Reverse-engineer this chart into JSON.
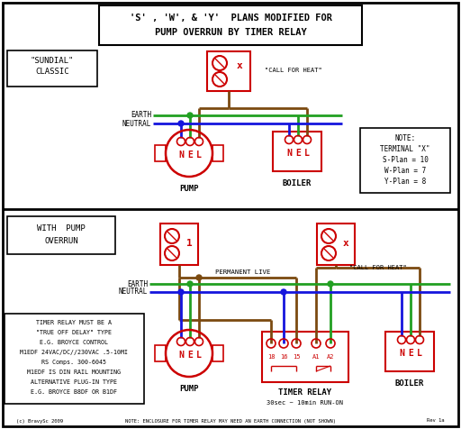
{
  "title_lines": [
    "'S' , 'W', & 'Y'  PLANS MODIFIED FOR",
    "PUMP OVERRUN BY TIMER RELAY"
  ],
  "bg_color": "#ffffff",
  "wire_brown": "#7B4A10",
  "wire_green": "#22A022",
  "wire_blue": "#1515DD",
  "border_color": "#000000",
  "red_color": "#CC0000",
  "text_color": "#000000",
  "note_text": [
    "NOTE:",
    "TERMINAL \"X\"",
    "S-Plan = 10",
    "W-Plan = 7",
    "Y-Plan = 8"
  ],
  "timer_note": [
    "TIMER RELAY MUST BE A",
    "\"TRUE OFF DELAY\" TYPE",
    "E.G. BROYCE CONTROL",
    "M1EDF 24VAC/DC//230VAC .5-10MI",
    "RS Comps. 300-6045",
    "M1EDF IS DIN RAIL MOUNTING",
    "ALTERNATIVE PLUG-IN TYPE",
    "E.G. BROYCE B8DF OR B1DF"
  ],
  "bottom_note": "NOTE: ENCLOSURE FOR TIMER RELAY MAY NEED AN EARTH CONNECTION (NOT SHOWN)"
}
